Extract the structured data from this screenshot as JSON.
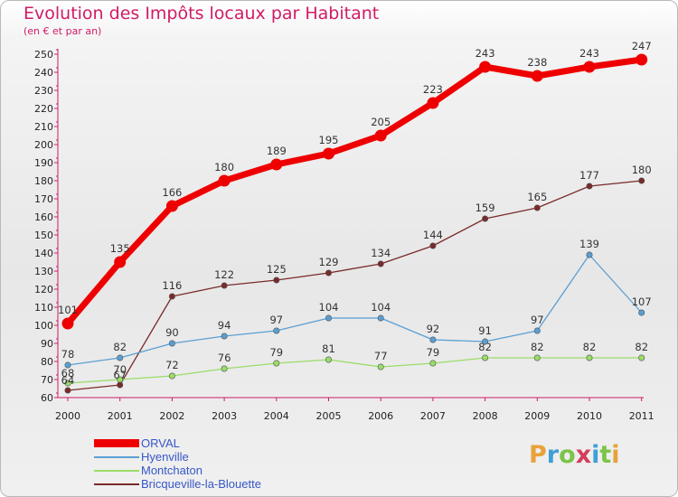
{
  "title": "Evolution des Impôts locaux par Habitant",
  "subtitle": "(en € et par an)",
  "logo": "Proxiti",
  "chart_data": {
    "type": "line",
    "title": "Evolution des Impôts locaux par Habitant",
    "ylabel": "(en € et par an)",
    "xlabel": "",
    "ylim": [
      60,
      250
    ],
    "ytick_step": 10,
    "grid": false,
    "categories": [
      "2000",
      "2001",
      "2002",
      "2003",
      "2004",
      "2005",
      "2006",
      "2007",
      "2008",
      "2009",
      "2010",
      "2011"
    ],
    "series": [
      {
        "name": "Bricqueville-la-Blouette",
        "color": "#7a2a2a",
        "values": [
          64,
          67,
          116,
          122,
          125,
          129,
          134,
          144,
          159,
          165,
          177,
          180
        ],
        "labels": [
          "",
          "",
          "116",
          "122",
          "125",
          "129",
          "134",
          "144",
          "159",
          "165",
          "177",
          "180"
        ]
      },
      {
        "name": "Montchaton",
        "color": "#99dd66",
        "values": [
          68,
          70,
          72,
          76,
          79,
          81,
          77,
          79,
          82,
          82,
          82,
          82
        ],
        "labels": [
          "",
          "",
          "72",
          "76",
          "79",
          "81",
          "77",
          "79",
          "82",
          "82",
          "82",
          "82"
        ]
      },
      {
        "name": "Hyenville",
        "color": "#5a9fd4",
        "values": [
          78,
          82,
          90,
          94,
          97,
          104,
          104,
          92,
          91,
          97,
          139,
          107
        ],
        "labels": [
          "78",
          "82",
          "90",
          "94",
          "97",
          "104",
          "104",
          "92",
          "91",
          "97",
          "139",
          "107"
        ]
      },
      {
        "name": "ORVAL",
        "color": "#ee0000",
        "values": [
          101,
          135,
          166,
          180,
          189,
          195,
          205,
          223,
          243,
          238,
          243,
          247
        ],
        "labels": [
          "101",
          "135",
          "166",
          "180",
          "189",
          "195",
          "205",
          "223",
          "243",
          "238",
          "243",
          "247"
        ]
      }
    ],
    "overlap_labels": [
      {
        "text": "68",
        "year_index": 0,
        "value": 68
      },
      {
        "text": "64",
        "year_index": 0,
        "value": 64
      },
      {
        "text": "70",
        "year_index": 1,
        "value": 70
      },
      {
        "text": "67",
        "year_index": 1,
        "value": 67
      }
    ],
    "legend": [
      "ORVAL",
      "Hyenville",
      "Montchaton",
      "Bricqueville-la-Blouette"
    ],
    "legend_position": "bottom-left"
  },
  "legend_colors": {
    "ORVAL": "#ee0000",
    "Hyenville": "#5a9fd4",
    "Montchaton": "#99dd66",
    "Bricqueville-la-Blouette": "#7a2a2a"
  },
  "axis_color": "#d11b67"
}
